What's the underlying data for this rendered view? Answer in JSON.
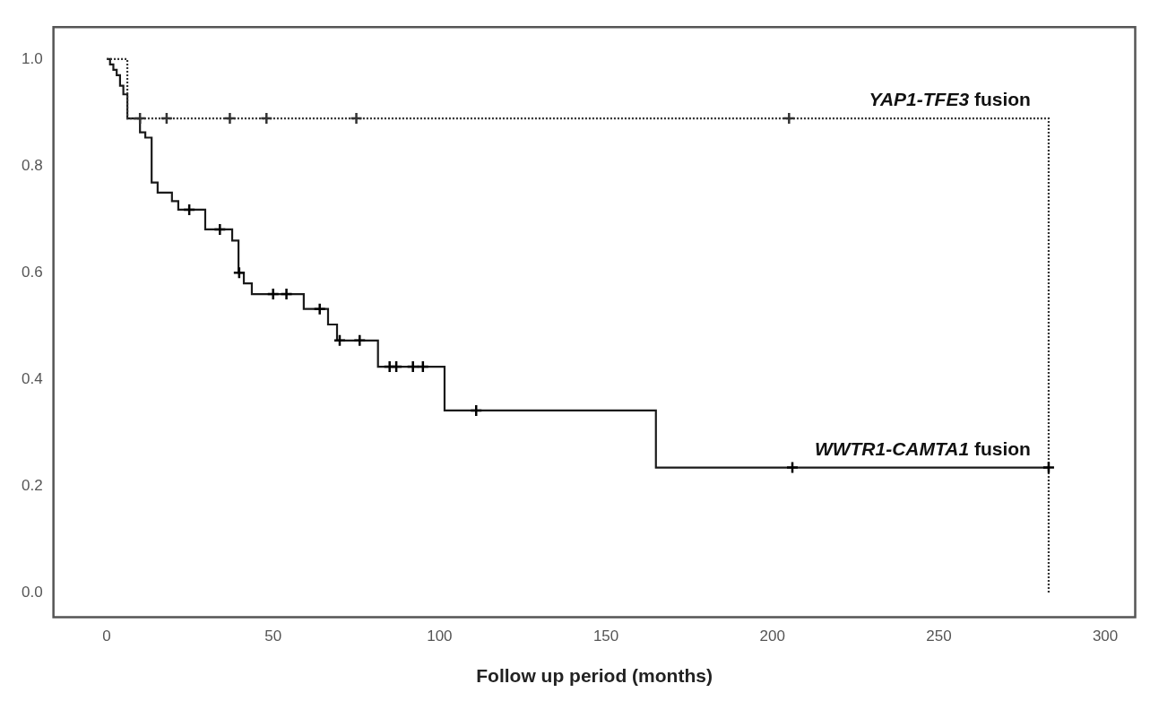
{
  "chart_data": {
    "type": "step",
    "xlabel": "Follow up period (months)",
    "xlim": [
      -16,
      309
    ],
    "xticks": [
      0,
      50,
      100,
      150,
      200,
      250,
      300
    ],
    "ylim": [
      -0.045,
      1.06
    ],
    "yticks": [
      {
        "value": 0,
        "label": "0.0"
      },
      {
        "value": 0.2,
        "label": "0.2"
      },
      {
        "value": 0.4,
        "label": "0.4"
      },
      {
        "value": 0.6,
        "label": "0.6"
      },
      {
        "value": 0.8,
        "label": "0.8"
      },
      {
        "value": 1,
        "label": "1.0"
      }
    ],
    "grid": false,
    "legend": false,
    "series": [
      {
        "name": "YAP1-TFE3 fusion",
        "color": "#333333",
        "line_style": "dotted",
        "marker": "none",
        "x": [
          0,
          6.2,
          283,
          283
        ],
        "values": [
          1,
          0.889,
          0.889,
          0
        ]
      },
      {
        "name": "WWTR1-CAMTA1 fusion",
        "color": "#1a1a1a",
        "line_style": "solid",
        "marker": "none",
        "x": [
          0,
          1,
          2,
          3,
          4,
          5,
          6.2,
          10,
          11.6,
          13.5,
          15.3,
          19.6,
          21.5,
          29.6,
          37.7,
          39.6,
          41.2,
          43.6,
          59.2,
          66.5,
          69.2,
          81.5,
          101.5,
          165,
          283
        ],
        "values": [
          1,
          0.99,
          0.98,
          0.97,
          0.95,
          0.934,
          0.889,
          0.863,
          0.853,
          0.769,
          0.75,
          0.734,
          0.718,
          0.681,
          0.66,
          0.6,
          0.58,
          0.56,
          0.532,
          0.503,
          0.473,
          0.424,
          0.342,
          0.235,
          0.235
        ]
      },
      {
        "type": "scatter",
        "color": "#333333",
        "marker": "cross",
        "x": [
          10,
          18,
          37,
          48,
          75,
          205
        ],
        "values": [
          0.889,
          0.889,
          0.889,
          0.889,
          0.889,
          0.889
        ]
      },
      {
        "type": "scatter",
        "color": "#000000",
        "marker": "cross",
        "x": [
          24.8,
          34,
          39.8,
          50,
          54,
          64,
          70,
          76,
          85,
          87,
          92,
          95,
          111,
          206,
          283
        ],
        "values": [
          0.718,
          0.681,
          0.6,
          0.56,
          0.56,
          0.532,
          0.473,
          0.473,
          0.424,
          0.424,
          0.424,
          0.424,
          0.342,
          0.235,
          0.235
        ]
      }
    ]
  }
}
